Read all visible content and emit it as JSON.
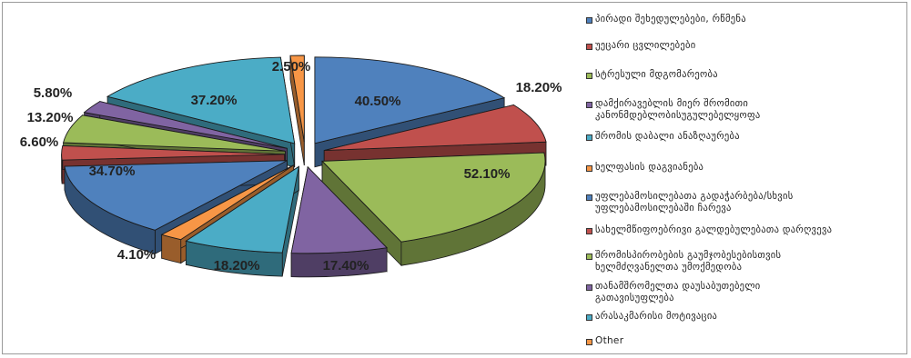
{
  "chart_data": {
    "type": "pie",
    "title": "",
    "slices": [
      {
        "label": "პირადი შეხედულებები, რწმენა",
        "value": 40.5,
        "value_label": "40.50%",
        "color": "#4f81bd"
      },
      {
        "label": "უეცარი ცვლილებები",
        "value": 18.2,
        "value_label": "18.20%",
        "color": "#c0504d"
      },
      {
        "label": "სტრესული მდგომარეობა",
        "value": 52.1,
        "value_label": "52.10%",
        "color": "#9bbb59"
      },
      {
        "label": "დამქირავებლის მიერ შრომითი\nკანონმდებლობისუგულებელყოფა",
        "value": 17.4,
        "value_label": "17.40%",
        "color": "#8064a2"
      },
      {
        "label": "შრომის დაბალი ანაზღაურება",
        "value": 18.2,
        "value_label": "18.20%",
        "color": "#4bacc6"
      },
      {
        "label": "ხელფასის დაგვიანება",
        "value": 4.1,
        "value_label": "4.10%",
        "color": "#f79646"
      },
      {
        "label": "უფლებამოსილებათა გადაჭარბება/სხვის\nუფლებამოსილებაში ჩარევა",
        "value": 34.7,
        "value_label": "34.70%",
        "color": "#4f81bd"
      },
      {
        "label": "სახელმწიფოებრივი გალდებულებათა დარღვევა",
        "value": 6.6,
        "value_label": "6.60%",
        "color": "#c0504d"
      },
      {
        "label": "შრომისპირობების გაუმჯობესებისთვის\nხელმძღვანელთა უმოქმედობა",
        "value": 13.2,
        "value_label": "13.20%",
        "color": "#9bbb59"
      },
      {
        "label": "თანამშრომელთა დაუსაბუთებელი\nგათავისუფლება",
        "value": 5.8,
        "value_label": "5.80%",
        "color": "#8064a2"
      },
      {
        "label": "არასაკმარისი მოტივაცია",
        "value": 37.2,
        "value_label": "37.20%",
        "color": "#4bacc6"
      },
      {
        "label": "Other",
        "value": 2.5,
        "value_label": "2.50%",
        "color": "#f79646"
      }
    ],
    "legend_position": "right",
    "exploded": true,
    "three_d": true
  }
}
